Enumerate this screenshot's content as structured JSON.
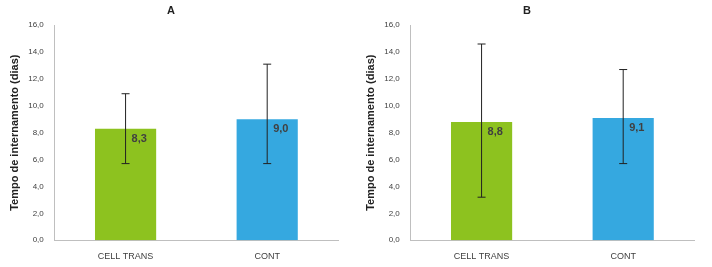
{
  "chart_data": [
    {
      "type": "bar",
      "title": "A",
      "y_label": "Tempo de internamento (dias)",
      "categories": [
        "CELL TRANS",
        "CONT"
      ],
      "values": [
        8.3,
        9.0
      ],
      "value_labels": [
        "8,3",
        "9,0"
      ],
      "error_low": [
        5.7,
        5.7
      ],
      "error_high": [
        10.9,
        13.1
      ],
      "colors": [
        "#8dc21f",
        "#35a8e0"
      ],
      "ylim": [
        0,
        16
      ],
      "yticks": [
        {
          "value": 0,
          "label": "0,0"
        },
        {
          "value": 2,
          "label": "2,0"
        },
        {
          "value": 4,
          "label": "4,0"
        },
        {
          "value": 6,
          "label": "6,0"
        },
        {
          "value": 8,
          "label": "8,0"
        },
        {
          "value": 10,
          "label": "10,0"
        },
        {
          "value": 12,
          "label": "12,0"
        },
        {
          "value": 14,
          "label": "14,0"
        },
        {
          "value": 16,
          "label": "16,0"
        }
      ],
      "grid": false,
      "data_labels": true
    },
    {
      "type": "bar",
      "title": "B",
      "y_label": "Tempo de internamento (dias)",
      "categories": [
        "CELL TRANS",
        "CONT"
      ],
      "values": [
        8.8,
        9.1
      ],
      "value_labels": [
        "8,8",
        "9,1"
      ],
      "error_low": [
        3.2,
        5.7
      ],
      "error_high": [
        14.6,
        12.7
      ],
      "colors": [
        "#8dc21f",
        "#35a8e0"
      ],
      "ylim": [
        0,
        16
      ],
      "yticks": [
        {
          "value": 0,
          "label": "0,0"
        },
        {
          "value": 2,
          "label": "2,0"
        },
        {
          "value": 4,
          "label": "4,0"
        },
        {
          "value": 6,
          "label": "6,0"
        },
        {
          "value": 8,
          "label": "8,0"
        },
        {
          "value": 10,
          "label": "10,0"
        },
        {
          "value": 12,
          "label": "12,0"
        },
        {
          "value": 14,
          "label": "14,0"
        },
        {
          "value": 16,
          "label": "16,0"
        }
      ],
      "grid": false,
      "data_labels": true
    }
  ]
}
